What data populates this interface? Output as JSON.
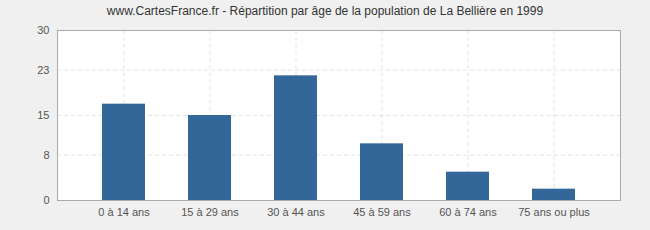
{
  "chart_data": {
    "type": "bar",
    "title": "www.CartesFrance.fr - Répartition par âge de la population de La Bellière en 1999",
    "categories": [
      "0 à 14 ans",
      "15 à 29 ans",
      "30 à 44 ans",
      "45 à 59 ans",
      "60 à 74 ans",
      "75 ans ou plus"
    ],
    "values": [
      17,
      15,
      22,
      10,
      5,
      2
    ],
    "color": "#336699",
    "ylim": [
      0,
      30
    ],
    "yticks": [
      0,
      8,
      15,
      23,
      30
    ],
    "grid": true
  }
}
